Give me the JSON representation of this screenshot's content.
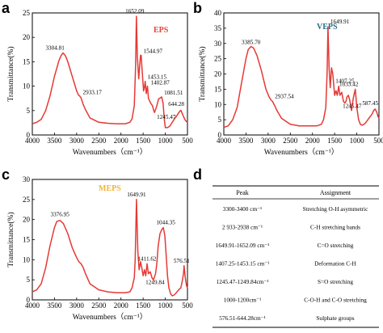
{
  "chart_data": [
    {
      "panel_letter": "a",
      "type": "line",
      "tag": "EPS",
      "tag_color": "#e8453c",
      "line_color": "#e53935",
      "xlabel": "Wavenumbers（cm⁻¹）",
      "ylabel": "Transmittance(%)",
      "xlim": [
        4000,
        500
      ],
      "ylim": [
        0,
        25
      ],
      "x_ticks": [
        4000,
        3500,
        3000,
        2500,
        2000,
        1500,
        1000,
        500
      ],
      "y_ticks": [
        0,
        5,
        10,
        15,
        20,
        25
      ],
      "peaks": [
        {
          "label": "3304.81",
          "x": 3304.81,
          "y": 16.8
        },
        {
          "label": "2933.17",
          "x": 2933.17,
          "y": 8.0
        },
        {
          "label": "1652.09",
          "x": 1652.09,
          "y": 24.3
        },
        {
          "label": "1544.97",
          "x": 1544.97,
          "y": 16.3
        },
        {
          "label": "1453.15",
          "x": 1453.15,
          "y": 11.0
        },
        {
          "label": "1402.87",
          "x": 1402.87,
          "y": 10.0
        },
        {
          "label": "1245.47",
          "x": 1245.47,
          "y": 4.6
        },
        {
          "label": "1081.51",
          "x": 1081.51,
          "y": 7.8
        },
        {
          "label": "644.28",
          "x": 644.28,
          "y": 5.0
        }
      ],
      "series": [
        {
          "x": [
            4000,
            3900,
            3800,
            3700,
            3600,
            3500,
            3400,
            3350,
            3304.81,
            3250,
            3200,
            3100,
            3000,
            2960,
            2933.17,
            2900,
            2850,
            2800,
            2700,
            2500,
            2300,
            2100,
            1900,
            1800,
            1750,
            1700,
            1670,
            1652.09,
            1630,
            1600,
            1580,
            1560,
            1544.97,
            1520,
            1490,
            1470,
            1453.15,
            1430,
            1402.87,
            1380,
            1330,
            1290,
            1260,
            1245.47,
            1220,
            1190,
            1150,
            1110,
            1081.51,
            1050,
            1020,
            1000,
            950,
            900,
            850,
            800,
            750,
            700,
            660,
            644.28,
            600,
            560,
            530,
            500
          ],
          "y": [
            2.3,
            2.6,
            3.2,
            5.0,
            8.0,
            12.0,
            15.2,
            16.3,
            16.8,
            16.2,
            15.0,
            12.0,
            9.0,
            8.2,
            8.0,
            7.6,
            6.2,
            5.2,
            3.5,
            2.6,
            2.4,
            2.3,
            2.3,
            2.6,
            3.3,
            6.0,
            14.0,
            24.3,
            16.0,
            11.5,
            14.0,
            16.3,
            16.3,
            13.0,
            9.0,
            9.8,
            11.0,
            8.5,
            10.0,
            7.5,
            6.5,
            6.0,
            5.0,
            4.6,
            5.2,
            6.0,
            7.4,
            7.6,
            7.8,
            6.5,
            3.0,
            1.5,
            1.5,
            1.8,
            2.5,
            3.2,
            3.8,
            4.5,
            5.0,
            5.0,
            4.0,
            3.2,
            2.8,
            2.6
          ]
        }
      ]
    },
    {
      "panel_letter": "b",
      "type": "line",
      "tag": "VEPS",
      "tag_color": "#2b6f87",
      "line_color": "#e53935",
      "xlabel": "Wavenumbers（cm⁻¹）",
      "ylabel": "Transmittance(%)",
      "xlim": [
        4000,
        500
      ],
      "ylim": [
        0,
        40
      ],
      "x_ticks": [
        4000,
        3500,
        3000,
        2500,
        2000,
        1500,
        1000,
        500
      ],
      "y_ticks": [
        0,
        5,
        10,
        15,
        20,
        25,
        30,
        35,
        40
      ],
      "peaks": [
        {
          "label": "3385.70",
          "x": 3385.7,
          "y": 29.0
        },
        {
          "label": "2937.54",
          "x": 2937.54,
          "y": 11.5
        },
        {
          "label": "1649.91",
          "x": 1649.91,
          "y": 35.5
        },
        {
          "label": "1407.25",
          "x": 1407.25,
          "y": 16.0
        },
        {
          "label": "1245.47",
          "x": 1245.47,
          "y": 11.0
        },
        {
          "label": "1033.42",
          "x": 1033.42,
          "y": 15.0
        },
        {
          "label": "587.45",
          "x": 587.45,
          "y": 8.5
        }
      ],
      "series": [
        {
          "x": [
            4000,
            3900,
            3800,
            3700,
            3600,
            3500,
            3450,
            3385.7,
            3330,
            3250,
            3150,
            3050,
            2980,
            2937.54,
            2900,
            2850,
            2800,
            2700,
            2500,
            2300,
            2100,
            1900,
            1800,
            1750,
            1700,
            1670,
            1649.91,
            1625,
            1600,
            1570,
            1540,
            1500,
            1470,
            1440,
            1407.25,
            1380,
            1340,
            1300,
            1270,
            1245.47,
            1220,
            1190,
            1160,
            1120,
            1080,
            1050,
            1033.42,
            1000,
            960,
            920,
            880,
            840,
            800,
            750,
            700,
            650,
            620,
            587.45,
            550,
            520,
            500
          ],
          "y": [
            2.5,
            3.0,
            5.0,
            9.0,
            17.0,
            25.0,
            28.0,
            29.0,
            28.5,
            26.0,
            21.0,
            15.0,
            12.5,
            11.5,
            11.0,
            9.5,
            8.0,
            5.5,
            3.5,
            3.0,
            3.0,
            3.0,
            3.5,
            5.0,
            9.0,
            20.0,
            35.5,
            22.0,
            15.5,
            22.0,
            20.0,
            13.0,
            14.5,
            13.0,
            16.0,
            13.0,
            14.0,
            11.0,
            10.5,
            11.0,
            12.5,
            13.0,
            11.5,
            8.0,
            12.0,
            14.0,
            15.0,
            9.0,
            5.0,
            3.5,
            3.2,
            3.5,
            4.0,
            5.0,
            6.0,
            7.0,
            8.0,
            8.5,
            7.5,
            6.0,
            5.5
          ]
        }
      ]
    },
    {
      "panel_letter": "c",
      "type": "line",
      "tag": "MEPS",
      "tag_color": "#f5b335",
      "line_color": "#e53935",
      "xlabel": "Wavenumbers（cm⁻¹）",
      "ylabel": "Transmittance(%)",
      "xlim": [
        4000,
        500
      ],
      "ylim": [
        0,
        30
      ],
      "x_ticks": [
        4000,
        3500,
        3000,
        2500,
        2000,
        1500,
        1000,
        500
      ],
      "y_ticks": [
        0,
        5,
        10,
        15,
        20,
        25,
        30
      ],
      "peaks": [
        {
          "label": "3376.95",
          "x": 3376.95,
          "y": 19.8
        },
        {
          "label": "1649.91",
          "x": 1649.91,
          "y": 25.0
        },
        {
          "label": "1411.62",
          "x": 1411.62,
          "y": 9.0
        },
        {
          "label": "1249.84",
          "x": 1249.84,
          "y": 5.5
        },
        {
          "label": "1044.35",
          "x": 1044.35,
          "y": 18.0
        },
        {
          "label": "576.51",
          "x": 576.51,
          "y": 8.5
        }
      ],
      "series": [
        {
          "x": [
            4000,
            3900,
            3800,
            3700,
            3600,
            3500,
            3450,
            3376.95,
            3300,
            3200,
            3100,
            3000,
            2950,
            2900,
            2850,
            2800,
            2700,
            2500,
            2300,
            2100,
            1900,
            1800,
            1750,
            1700,
            1680,
            1649.91,
            1620,
            1590,
            1560,
            1530,
            1500,
            1470,
            1440,
            1411.62,
            1380,
            1340,
            1300,
            1270,
            1249.84,
            1220,
            1190,
            1160,
            1120,
            1080,
            1044.35,
            1010,
            980,
            950,
            920,
            880,
            840,
            800,
            750,
            700,
            650,
            620,
            590,
            576.51,
            550,
            520,
            500
          ],
          "y": [
            2.0,
            2.5,
            4.0,
            8.0,
            13.5,
            18.0,
            19.5,
            19.8,
            19.0,
            16.5,
            13.0,
            10.5,
            9.5,
            9.0,
            8.0,
            6.5,
            4.0,
            2.5,
            2.0,
            1.8,
            1.8,
            2.0,
            3.0,
            5.5,
            10.0,
            25.0,
            12.0,
            7.5,
            9.5,
            8.0,
            6.0,
            7.5,
            6.0,
            9.0,
            6.5,
            7.0,
            5.5,
            5.0,
            5.5,
            6.5,
            9.0,
            13.5,
            16.5,
            17.5,
            18.0,
            16.0,
            11.0,
            6.0,
            3.0,
            1.5,
            1.0,
            1.2,
            1.8,
            2.5,
            3.0,
            4.5,
            6.5,
            8.5,
            5.5,
            3.5,
            3.0
          ]
        }
      ]
    },
    {
      "panel_letter": "d",
      "type": "table",
      "columns": [
        "Peak",
        "Assignment"
      ],
      "rows": [
        [
          "3300-3400 cm⁻¹",
          "Stretching O-H asymmetric"
        ],
        [
          "2 933-2938 cm⁻¹",
          "C-H stretching bands"
        ],
        [
          "1649.91-1652.09 cm⁻¹",
          "C=O stretching"
        ],
        [
          "1407.25-1453.15 cm⁻¹",
          "Deformation C-H"
        ],
        [
          "1245.47-1249.84cm⁻¹",
          "S=O stretching"
        ],
        [
          "1000-1200cm⁻¹",
          "C-O-H and C-O stretching"
        ],
        [
          "576.51-644.28cm⁻¹",
          "Sulphate groups"
        ]
      ]
    }
  ]
}
